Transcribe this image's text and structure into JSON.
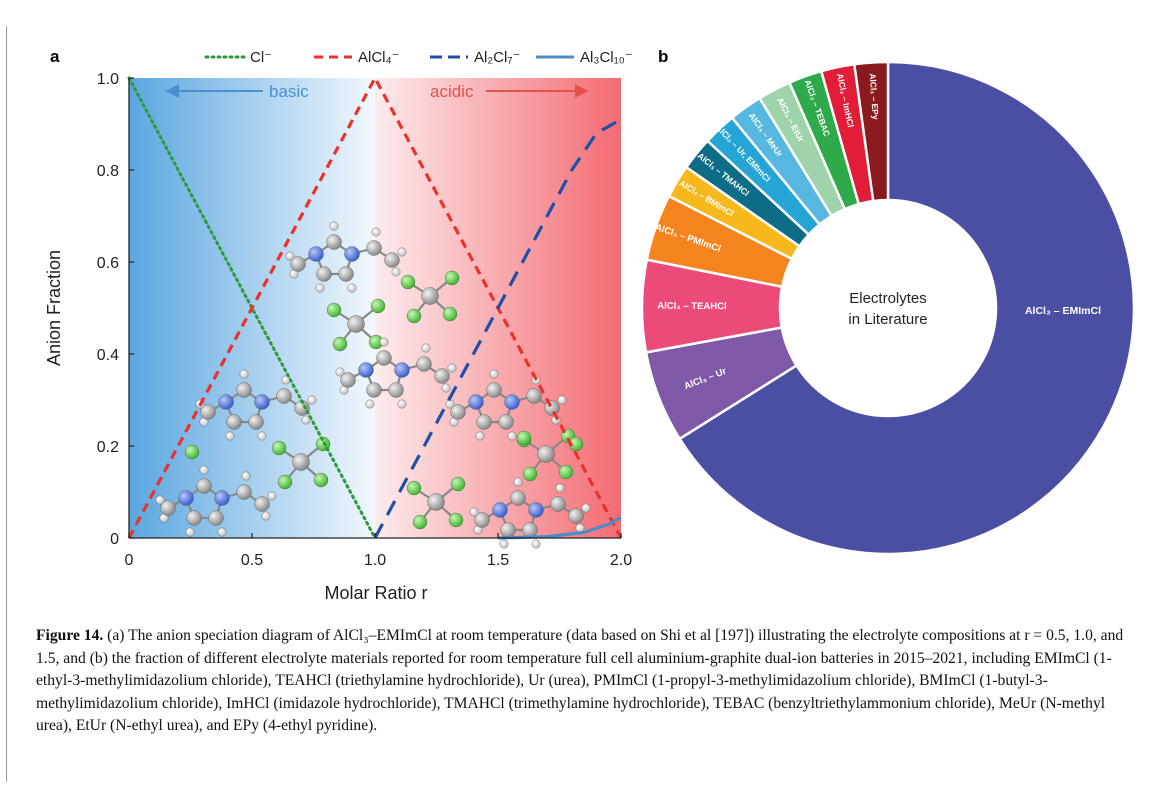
{
  "panel_a": {
    "label": "a",
    "chart_data": {
      "type": "line",
      "xlabel": "Molar Ratio r",
      "ylabel": "Anion Fraction",
      "xlim": [
        0,
        2.0
      ],
      "ylim": [
        0,
        1.0
      ],
      "x_ticks": [
        "0",
        "0.5",
        "1.0",
        "1.5",
        "2.0"
      ],
      "y_ticks": [
        "0",
        "0.2",
        "0.4",
        "0.6",
        "0.8",
        "1.0"
      ],
      "legend_position": "top",
      "series": [
        {
          "name": "Cl⁻",
          "color": "#2e9a3a",
          "style": "dotted",
          "x": [
            0,
            1.0
          ],
          "y": [
            1.0,
            0
          ]
        },
        {
          "name": "AlCl₄⁻",
          "color": "#e8322a",
          "style": "dashed",
          "x": [
            0,
            1.0,
            2.0
          ],
          "y": [
            0,
            1.0,
            0
          ]
        },
        {
          "name": "Al₂Cl₇⁻",
          "color": "#1f4fa8",
          "style": "longdash",
          "x": [
            1.0,
            1.2,
            1.4,
            1.6,
            1.8,
            1.9,
            2.0
          ],
          "y": [
            0,
            0.2,
            0.4,
            0.6,
            0.8,
            0.88,
            0.91
          ]
        },
        {
          "name": "Al₃Cl₁₀⁻",
          "color": "#4a8cc8",
          "style": "solid",
          "x": [
            1.5,
            1.7,
            1.85,
            1.95,
            2.0
          ],
          "y": [
            0,
            0.003,
            0.012,
            0.03,
            0.045
          ]
        }
      ],
      "annotations": [
        {
          "text": "basic",
          "color": "#4a90d0"
        },
        {
          "text": "acidic",
          "color": "#e8504a"
        }
      ]
    }
  },
  "panel_b": {
    "label": "b",
    "center_line1": "Electrolytes",
    "center_line2": "in Literature",
    "chart_data": {
      "type": "pie",
      "categories": [
        "AlCl₃ – EMImCl",
        "AlCl₃ – Ur",
        "AlCl₃ – TEAHCl",
        "AlCl₃ – PMImCl",
        "AlCl₃ – BMImCl",
        "AlCl₃ – TMAHCl",
        "AlCl₃ – Ur, EMImCl",
        "AlCl₃ – MeUr",
        "AlCl₃ – EtUr",
        "AlCl₃ – TEBAC",
        "AlCl₃ – ImHCl",
        "AlCl₃ – EPy"
      ],
      "values": [
        63.5,
        5.8,
        5.8,
        4.2,
        2.1,
        2.1,
        2.1,
        2.1,
        2.1,
        2.1,
        2.1,
        2.1
      ],
      "colors": [
        "#4b4fa3",
        "#7f59a8",
        "#ec4a78",
        "#f5841f",
        "#f6b81c",
        "#0e6c87",
        "#25a5d6",
        "#56b7e1",
        "#9fd3ac",
        "#2faa4b",
        "#e11d37",
        "#8b1a1e"
      ]
    }
  },
  "caption": {
    "label": "Figure 14.",
    "text": " (a) The anion speciation diagram of AlCl₃–EMImCl at room temperature (data based on Shi et al [197]) illustrating the electrolyte compositions at r = 0.5, 1.0, and 1.5, and (b) the fraction of different electrolyte materials reported for room temperature full cell aluminium-graphite dual-ion batteries in 2015–2021, including EMImCl (1-ethyl-3-methylimidazolium chloride), TEAHCl (triethylamine hydrochloride), Ur (urea), PMImCl (1-propyl-3-methylimidazolium chloride), BMImCl (1-butyl-3-methylimidazolium chloride), ImHCl (imidazole hydrochloride), TMAHCl (trimethylamine hydrochloride), TEBAC (benzyltriethylammonium chloride), MeUr (N-methyl urea), EtUr (N-ethyl urea), and EPy (4-ethyl pyridine)."
  }
}
